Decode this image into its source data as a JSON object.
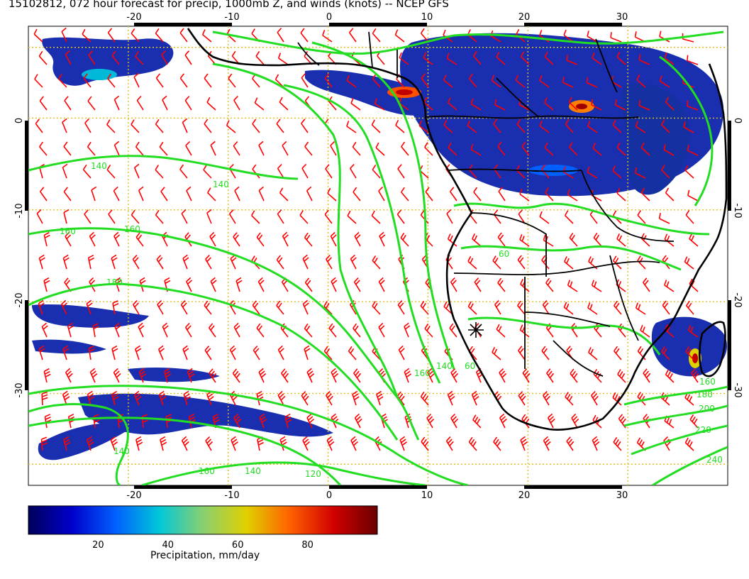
{
  "title": "15102812, 072 hour forecast for precip, 1000mb Z, and winds (knots) -- NCEP GFS",
  "map": {
    "lon_range": [
      -30,
      40
    ],
    "lat_range": [
      -40,
      10
    ],
    "lon_ticks": [
      "-20",
      "-10",
      "0",
      "10",
      "20",
      "30"
    ],
    "lat_ticks": [
      "0",
      "-10",
      "-20",
      "-30"
    ],
    "grid": "dotted",
    "colors": {
      "grid": "#e0c020",
      "wind_barbs": "#ff0000",
      "height_contours": "#22dd22",
      "coastlines": "#000000",
      "precip_low": "#1a2fb0"
    }
  },
  "contour_labels": [
    "140",
    "140",
    "160",
    "160",
    "180",
    "60",
    "160",
    "140",
    "60",
    "160",
    "180",
    "200",
    "220",
    "240",
    "140",
    "160",
    "140",
    "120"
  ],
  "colorbar": {
    "label": "Precipitation, mm/day",
    "ticks": [
      "20",
      "40",
      "60",
      "80"
    ],
    "range": [
      0,
      100
    ],
    "stops": [
      "#00005a",
      "#0000cc",
      "#0060ff",
      "#00c8d8",
      "#88d070",
      "#e0d000",
      "#ff6000",
      "#d00000",
      "#6a0000"
    ]
  }
}
